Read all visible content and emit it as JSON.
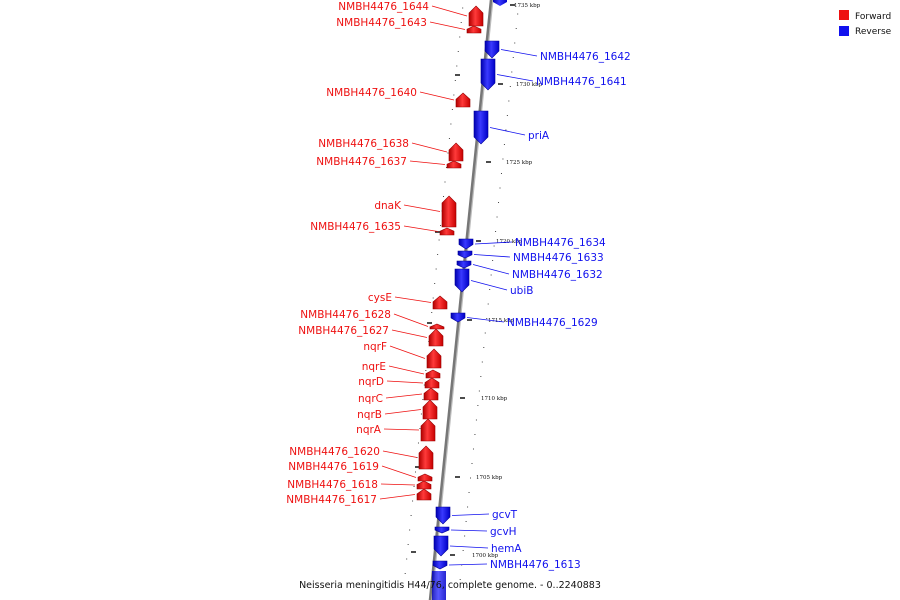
{
  "colors": {
    "forward": "#ee1111",
    "reverse": "#1111ee",
    "backbone": "#777777"
  },
  "legend": [
    {
      "label": "Forward",
      "color": "#ee1111"
    },
    {
      "label": "Reverse",
      "color": "#1111ee"
    }
  ],
  "caption": "Neisseria meningitidis H44/76, complete genome. - 0..2240883",
  "chart_data": {
    "type": "genome-map",
    "ticks": [
      "1735 kbp",
      "1730 kbp",
      "1725 kbp",
      "1720 kbp",
      "1715 kbp",
      "1710 kbp",
      "1705 kbp",
      "1700 kbp"
    ],
    "genes": [
      {
        "name": "NMBH4476_1644",
        "strand": "forward"
      },
      {
        "name": "NMBH4476_1643",
        "strand": "forward"
      },
      {
        "name": "NMBH4476_1642",
        "strand": "reverse"
      },
      {
        "name": "NMBH4476_1641",
        "strand": "reverse"
      },
      {
        "name": "NMBH4476_1640",
        "strand": "forward"
      },
      {
        "name": "priA",
        "strand": "reverse"
      },
      {
        "name": "NMBH4476_1638",
        "strand": "forward"
      },
      {
        "name": "NMBH4476_1637",
        "strand": "forward"
      },
      {
        "name": "dnaK",
        "strand": "forward"
      },
      {
        "name": "NMBH4476_1635",
        "strand": "forward"
      },
      {
        "name": "NMBH4476_1634",
        "strand": "reverse"
      },
      {
        "name": "NMBH4476_1633",
        "strand": "reverse"
      },
      {
        "name": "NMBH4476_1632",
        "strand": "reverse"
      },
      {
        "name": "ubiB",
        "strand": "reverse"
      },
      {
        "name": "cysE",
        "strand": "forward"
      },
      {
        "name": "NMBH4476_1628",
        "strand": "forward"
      },
      {
        "name": "NMBH4476_1629",
        "strand": "reverse"
      },
      {
        "name": "NMBH4476_1627",
        "strand": "forward"
      },
      {
        "name": "nqrF",
        "strand": "forward"
      },
      {
        "name": "nqrE",
        "strand": "forward"
      },
      {
        "name": "nqrD",
        "strand": "forward"
      },
      {
        "name": "nqrC",
        "strand": "forward"
      },
      {
        "name": "nqrB",
        "strand": "forward"
      },
      {
        "name": "nqrA",
        "strand": "forward"
      },
      {
        "name": "NMBH4476_1620",
        "strand": "forward"
      },
      {
        "name": "NMBH4476_1619",
        "strand": "forward"
      },
      {
        "name": "NMBH4476_1618",
        "strand": "forward"
      },
      {
        "name": "NMBH4476_1617",
        "strand": "forward"
      },
      {
        "name": "gcvT",
        "strand": "reverse"
      },
      {
        "name": "gcvH",
        "strand": "reverse"
      },
      {
        "name": "hemA",
        "strand": "reverse"
      },
      {
        "name": "NMBH4476_1613",
        "strand": "reverse"
      }
    ]
  }
}
